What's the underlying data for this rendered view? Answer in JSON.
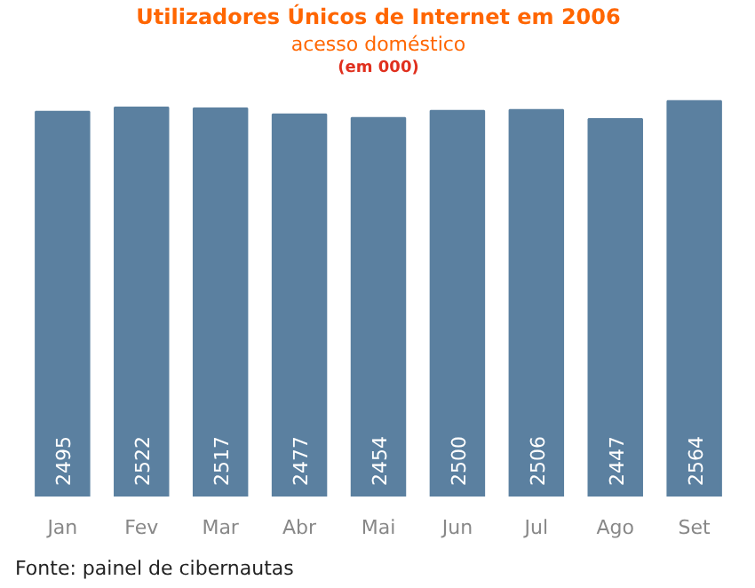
{
  "chart_data": {
    "type": "bar",
    "title": "Utilizadores Únicos de Internet em 2006",
    "subtitle": "acesso doméstico",
    "annotations": [
      "(em 000)",
      "Fonte: painel de cibernautas"
    ],
    "categories": [
      "Jan",
      "Fev",
      "Mar",
      "Abr",
      "Mai",
      "Jun",
      "Jul",
      "Ago",
      "Set"
    ],
    "values": [
      2495,
      2522,
      2517,
      2477,
      2454,
      2500,
      2506,
      2447,
      2564
    ],
    "color": "#5b80a0",
    "data_labels": true,
    "grid": false
  }
}
